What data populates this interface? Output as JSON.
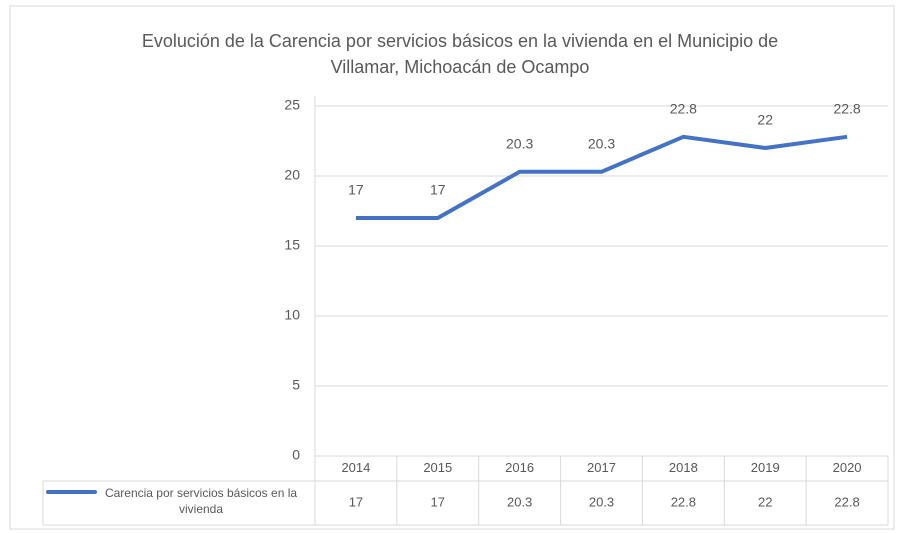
{
  "chart_data": {
    "type": "line",
    "title": [
      "Evolución de la Carencia por servicios básicos en la vivienda en el Municipio de",
      "Villamar, Michoacán de Ocampo"
    ],
    "categories": [
      "2014",
      "2015",
      "2016",
      "2017",
      "2018",
      "2019",
      "2020"
    ],
    "series": [
      {
        "name": "Carencia por servicios básicos en la vivienda",
        "color": "#4472c4",
        "values": [
          17,
          17,
          20.3,
          20.3,
          22.8,
          22,
          22.8
        ]
      }
    ],
    "ylim": [
      0,
      25
    ],
    "yticks": [
      0,
      5,
      10,
      15,
      20,
      25
    ],
    "grid": true,
    "data_table": true
  }
}
